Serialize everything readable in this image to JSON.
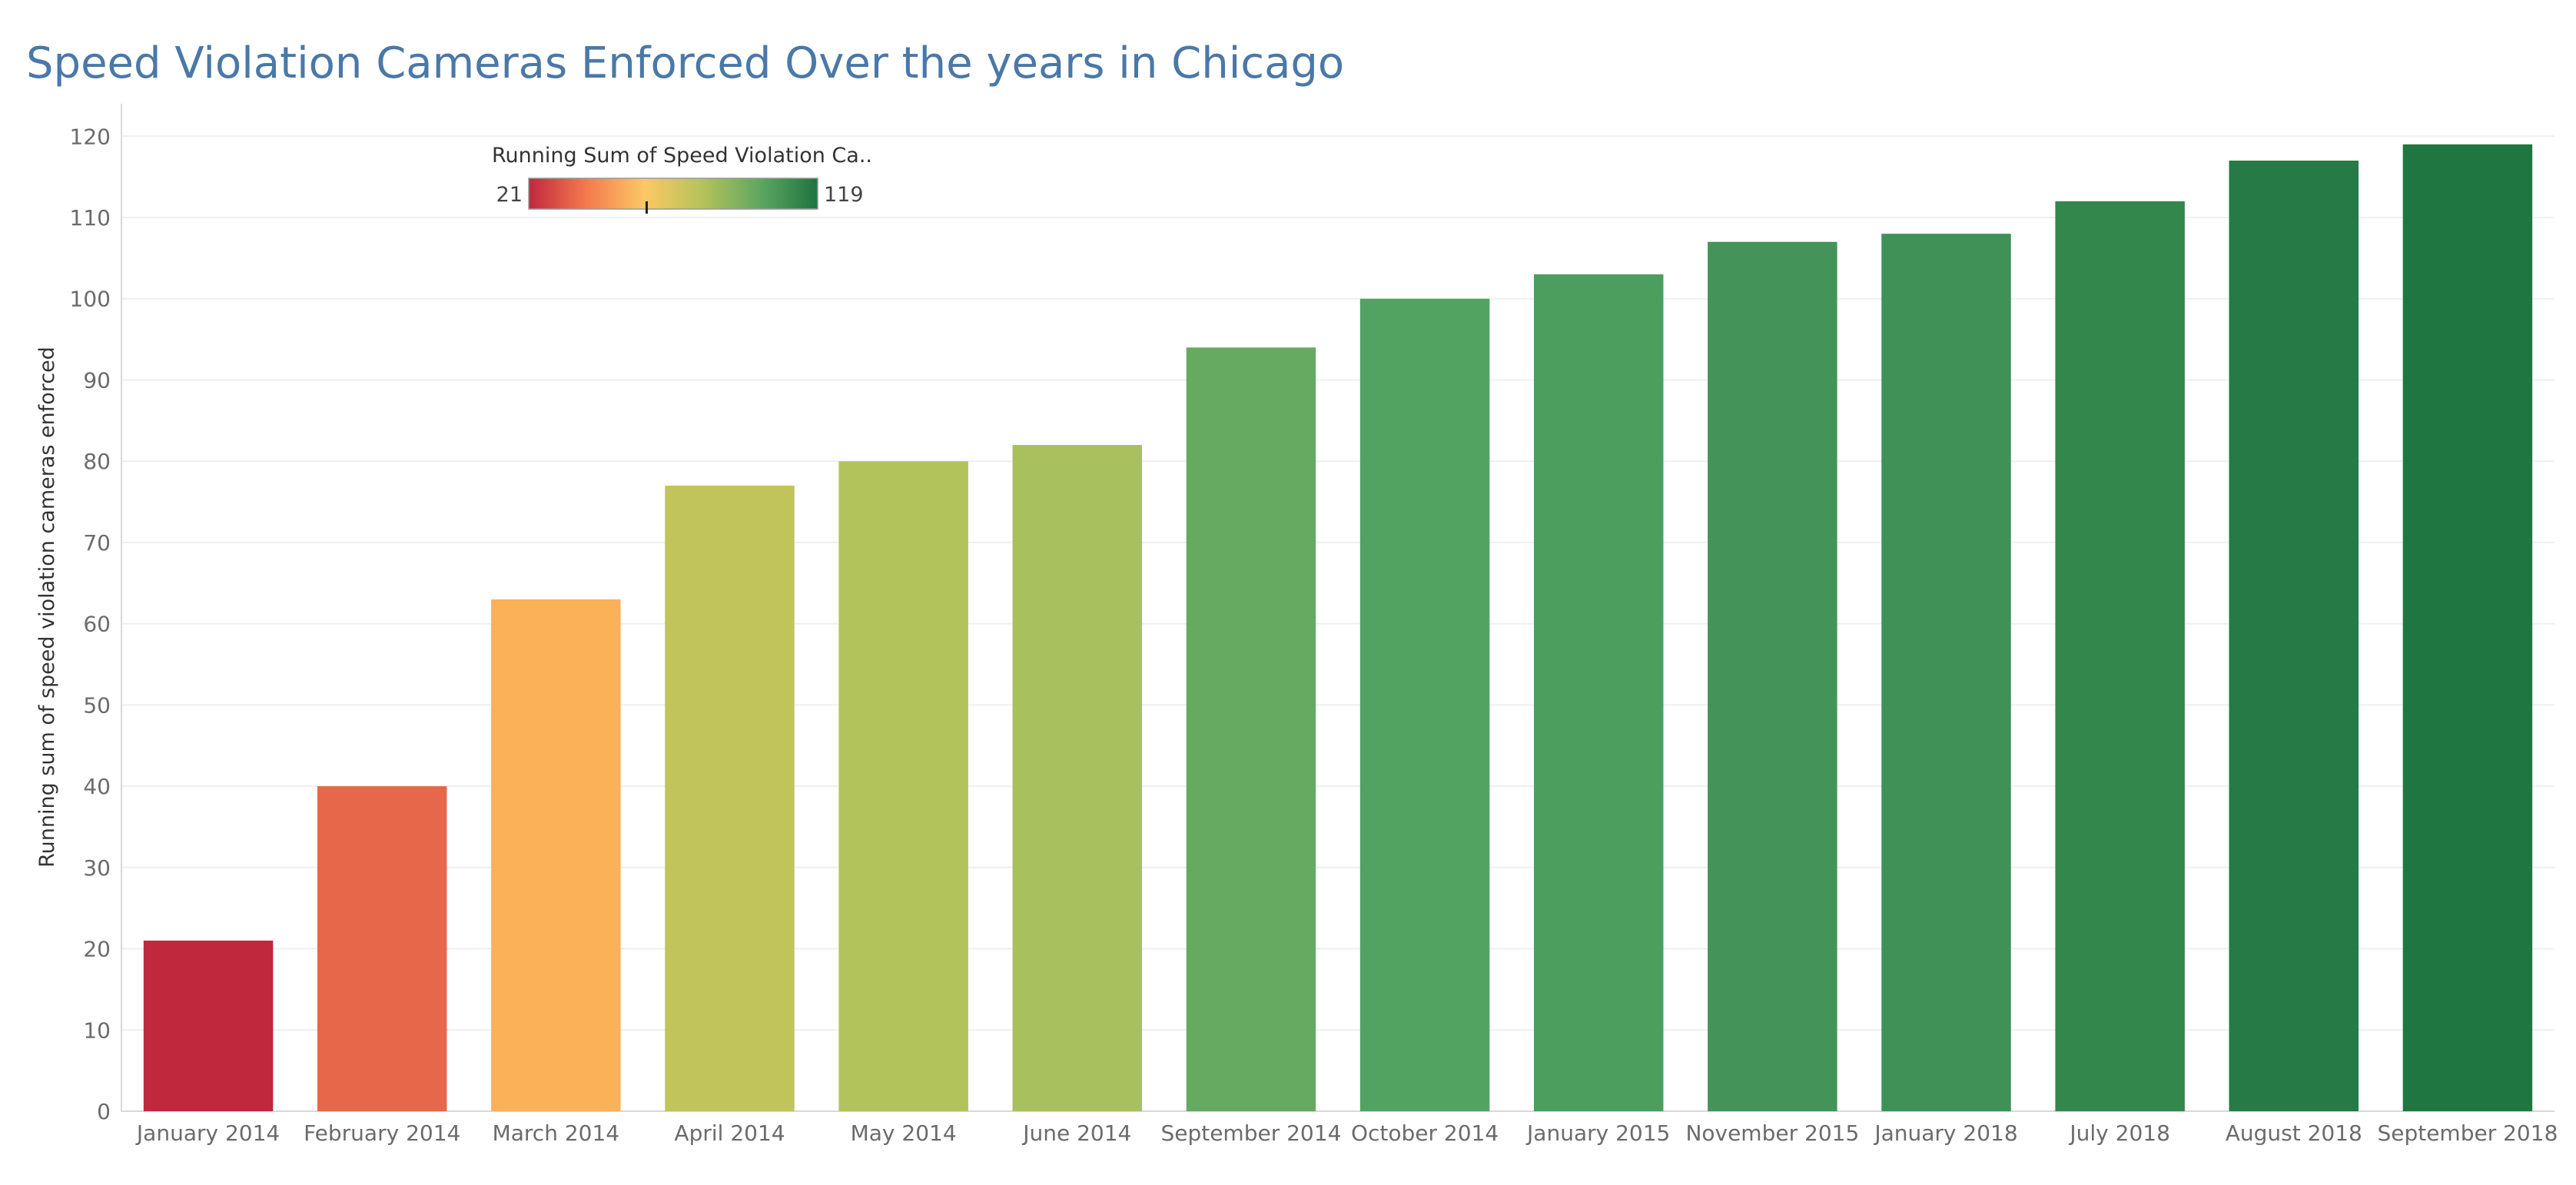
{
  "title": "Speed Violation Cameras Enforced Over the years in Chicago",
  "colors": {
    "title": "#4a78a8",
    "scale": [
      "#c0283e",
      "#f47a4f",
      "#fcc865",
      "#b5c35a",
      "#5ea761",
      "#1f7441"
    ]
  },
  "legend": {
    "title": "Running Sum of Speed Violation Ca..",
    "min_label": "21",
    "max_label": "119",
    "placement": "top-left",
    "marker_value": 61
  },
  "chart_data": {
    "type": "bar",
    "title": "Speed Violation Cameras Enforced Over the years in Chicago",
    "xlabel": "",
    "ylabel": "Running sum of speed violation cameras enforced",
    "categories": [
      "January 2014",
      "February 2014",
      "March 2014",
      "April 2014",
      "May 2014",
      "June 2014",
      "September 2014",
      "October 2014",
      "January 2015",
      "November 2015",
      "January 2018",
      "July 2018",
      "August 2018",
      "September 2018"
    ],
    "values": [
      21,
      40,
      63,
      77,
      80,
      82,
      94,
      100,
      103,
      107,
      108,
      112,
      117,
      119
    ],
    "bar_colors": [
      "#c0283e",
      "#e6674a",
      "#fbb158",
      "#c0c45b",
      "#b2c35c",
      "#a8c05e",
      "#66aa62",
      "#52a262",
      "#4c9e5e",
      "#44945a",
      "#3f9158",
      "#33874c",
      "#257a45",
      "#207641"
    ],
    "ylim": [
      0,
      124
    ],
    "yticks": [
      0,
      10,
      20,
      30,
      40,
      50,
      60,
      70,
      80,
      90,
      100,
      110,
      120
    ],
    "grid": true,
    "color_range": [
      21,
      119
    ]
  }
}
